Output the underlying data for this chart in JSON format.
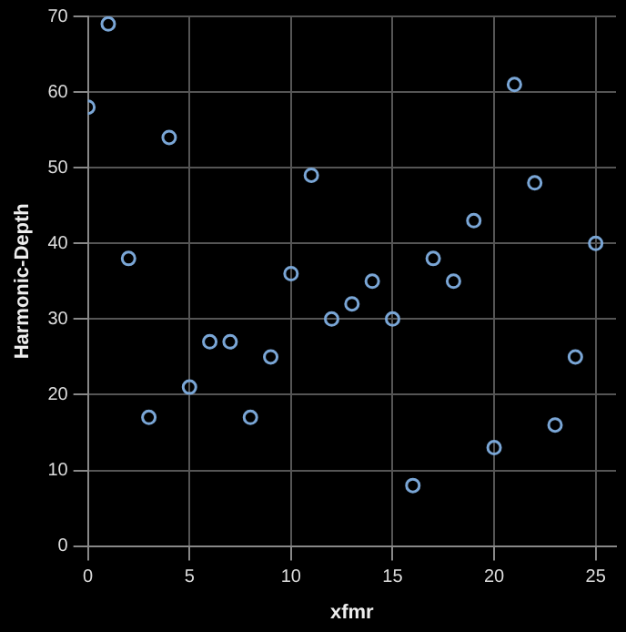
{
  "chart_data": {
    "type": "scatter",
    "xlabel": "xfmr",
    "ylabel": "Harmonic-Depth",
    "x": [
      0,
      1,
      2,
      3,
      4,
      5,
      6,
      7,
      8,
      9,
      10,
      11,
      12,
      13,
      14,
      15,
      16,
      17,
      18,
      19,
      20,
      21,
      22,
      23,
      24,
      25
    ],
    "series": [
      {
        "color": "#7aa6d6",
        "values": [
          58,
          69,
          38,
          17,
          54,
          21,
          27,
          27,
          17,
          25,
          36,
          49,
          30,
          32,
          35,
          30,
          8,
          38,
          35,
          43,
          13,
          61,
          48,
          16,
          25,
          40
        ]
      }
    ],
    "xlim": [
      0,
      26
    ],
    "xticks": [
      0,
      5,
      10,
      15,
      20,
      25
    ],
    "ylim": [
      0,
      70
    ],
    "yticks": [
      0,
      10,
      20,
      30,
      40,
      50,
      60,
      70
    ],
    "grid": true,
    "marker": "circle"
  }
}
